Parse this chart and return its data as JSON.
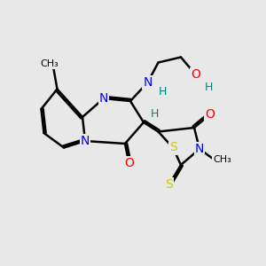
{
  "bg_color": "#e8e8e8",
  "bond_color": "#000000",
  "bond_width": 1.8,
  "atom_colors": {
    "N": "#0000ff",
    "O": "#ff0000",
    "S": "#cccc00",
    "H": "#008080"
  },
  "font_size_atom": 10,
  "font_size_small": 9
}
